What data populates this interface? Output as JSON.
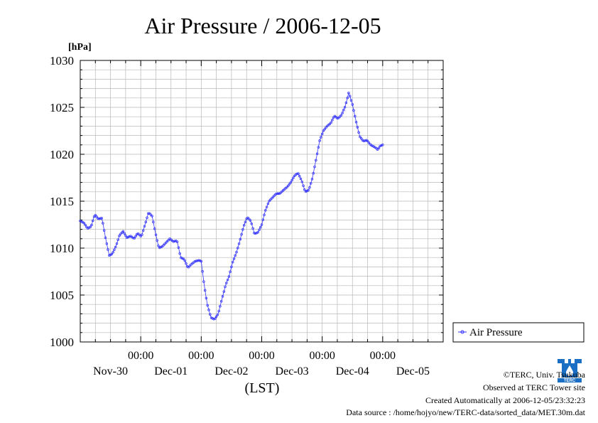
{
  "chart_data": {
    "type": "line",
    "title": "Air Pressure / 2006-12-05",
    "ylabel": "[hPa]",
    "xlabel": "(LST)",
    "ylim": [
      1000,
      1030
    ],
    "xlim": [
      -1,
      5
    ],
    "yticks": [
      "1000",
      "1005",
      "1010",
      "1015",
      "1020",
      "1025",
      "1030"
    ],
    "xticks": [
      {
        "time": "00:00",
        "date": "Dec-01"
      },
      {
        "time": "00:00",
        "date": "Dec-02"
      },
      {
        "time": "00:00",
        "date": "Dec-03"
      },
      {
        "time": "00:00",
        "date": "Dec-04"
      },
      {
        "time": "00:00",
        "date": "Dec-05"
      }
    ],
    "first_day_label": "Nov-30",
    "grid": true,
    "legend_position": "bottom-right",
    "series": [
      {
        "name": "Air Pressure",
        "color": "#3333ff",
        "points": [
          [
            -1.0,
            1012.9
          ],
          [
            -0.94,
            1012.7
          ],
          [
            -0.88,
            1012.1
          ],
          [
            -0.82,
            1012.3
          ],
          [
            -0.76,
            1013.6
          ],
          [
            -0.7,
            1013.1
          ],
          [
            -0.64,
            1013.2
          ],
          [
            -0.58,
            1011.0
          ],
          [
            -0.52,
            1009.2
          ],
          [
            -0.47,
            1009.4
          ],
          [
            -0.41,
            1010.2
          ],
          [
            -0.35,
            1011.4
          ],
          [
            -0.29,
            1011.8
          ],
          [
            -0.23,
            1011.1
          ],
          [
            -0.17,
            1011.3
          ],
          [
            -0.11,
            1011.0
          ],
          [
            -0.05,
            1011.6
          ],
          [
            0.01,
            1011.2
          ],
          [
            0.07,
            1012.5
          ],
          [
            0.13,
            1013.8
          ],
          [
            0.19,
            1013.4
          ],
          [
            0.24,
            1011.7
          ],
          [
            0.3,
            1010.0
          ],
          [
            0.36,
            1010.2
          ],
          [
            0.42,
            1010.6
          ],
          [
            0.48,
            1011.0
          ],
          [
            0.54,
            1010.7
          ],
          [
            0.6,
            1010.8
          ],
          [
            0.66,
            1009.0
          ],
          [
            0.72,
            1008.8
          ],
          [
            0.78,
            1007.9
          ],
          [
            0.84,
            1008.3
          ],
          [
            0.9,
            1008.6
          ],
          [
            0.96,
            1008.7
          ],
          [
            1.0,
            1008.6
          ],
          [
            1.05,
            1006.0
          ],
          [
            1.1,
            1004.0
          ],
          [
            1.16,
            1002.6
          ],
          [
            1.22,
            1002.4
          ],
          [
            1.28,
            1003.0
          ],
          [
            1.34,
            1004.5
          ],
          [
            1.4,
            1006.0
          ],
          [
            1.46,
            1007.0
          ],
          [
            1.52,
            1008.5
          ],
          [
            1.58,
            1009.5
          ],
          [
            1.64,
            1010.8
          ],
          [
            1.7,
            1012.3
          ],
          [
            1.76,
            1013.3
          ],
          [
            1.82,
            1012.9
          ],
          [
            1.88,
            1011.5
          ],
          [
            1.94,
            1011.7
          ],
          [
            2.0,
            1012.5
          ],
          [
            2.06,
            1014.0
          ],
          [
            2.12,
            1015.0
          ],
          [
            2.18,
            1015.4
          ],
          [
            2.24,
            1015.8
          ],
          [
            2.3,
            1015.8
          ],
          [
            2.36,
            1016.2
          ],
          [
            2.42,
            1016.5
          ],
          [
            2.48,
            1017.0
          ],
          [
            2.54,
            1017.7
          ],
          [
            2.6,
            1018.0
          ],
          [
            2.66,
            1017.2
          ],
          [
            2.72,
            1016.0
          ],
          [
            2.78,
            1016.2
          ],
          [
            2.84,
            1017.5
          ],
          [
            2.9,
            1019.5
          ],
          [
            2.96,
            1021.5
          ],
          [
            3.02,
            1022.5
          ],
          [
            3.08,
            1023.0
          ],
          [
            3.14,
            1023.3
          ],
          [
            3.2,
            1024.1
          ],
          [
            3.26,
            1023.8
          ],
          [
            3.32,
            1024.2
          ],
          [
            3.38,
            1025.1
          ],
          [
            3.44,
            1026.6
          ],
          [
            3.5,
            1025.3
          ],
          [
            3.56,
            1023.5
          ],
          [
            3.62,
            1021.9
          ],
          [
            3.68,
            1021.4
          ],
          [
            3.74,
            1021.5
          ],
          [
            3.8,
            1021.0
          ],
          [
            3.86,
            1020.8
          ],
          [
            3.92,
            1020.5
          ],
          [
            3.96,
            1020.9
          ],
          [
            4.0,
            1021.0
          ]
        ]
      }
    ]
  },
  "credits": {
    "copyright": "©TERC, Univ. Tsukuba",
    "observed": "Observed at TERC Tower site",
    "created": "Created Automatically at 2006-12-05/23:32:23",
    "source": "Data source : /home/hojyo/new/TERC-data/sorted_data/MET.30m.dat"
  },
  "logo": {
    "text": "TERC",
    "color": "#1a6fc4"
  }
}
